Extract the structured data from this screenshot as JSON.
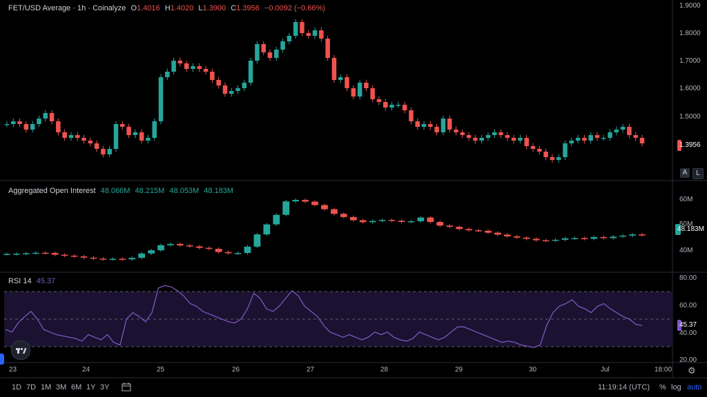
{
  "header": {
    "symbol": "FET/USD Average · 1h · Coinalyze",
    "open_label": "O",
    "open": "1.4016",
    "high_label": "H",
    "high": "1.4020",
    "low_label": "L",
    "low": "1.3900",
    "close_label": "C",
    "close": "1.3956",
    "change": "−0.0092 (−0.66%)"
  },
  "oi_legend": {
    "title": "Aggregated Open Interest",
    "v1": "48.066M",
    "v2": "48.215M",
    "v3": "48.053M",
    "v4": "48.183M"
  },
  "rsi_legend": {
    "title": "RSI 14",
    "value": "45.37"
  },
  "price_axis": [
    "1.9000",
    "1.8000",
    "1.7000",
    "1.6000",
    "1.5000"
  ],
  "price_tag": "1.3956",
  "oi_axis": [
    "60M",
    "50M",
    "40M"
  ],
  "oi_tag": "48.183M",
  "rsi_axis": [
    "80.00",
    "60.00",
    "40.00",
    "20.00"
  ],
  "rsi_tag": "45.37",
  "time_axis": [
    "23",
    "24",
    "25",
    "26",
    "27",
    "28",
    "29",
    "30",
    "Jul",
    "18:00"
  ],
  "corner_buttons": {
    "auto_scale": "A",
    "log_scale": "L"
  },
  "bottom_bar": {
    "ranges": [
      "1D",
      "7D",
      "1M",
      "3M",
      "6M",
      "1Y",
      "3Y"
    ],
    "calendar_icon": "calendar-range-icon",
    "clock": "11:19:14 (UTC)",
    "percent": "%",
    "log": "log",
    "auto": "auto"
  },
  "colors": {
    "up": "#26a69a",
    "down": "#ef5350",
    "rsi": "#7e57c2",
    "bg": "#000000"
  },
  "chart_data": [
    {
      "type": "line",
      "ohlc_style": "candlestick",
      "series": [
        {
          "values": [
            1.47,
            1.48,
            1.47,
            1.45,
            1.47,
            1.49,
            1.51,
            1.48,
            1.44,
            1.42,
            1.43,
            1.42,
            1.41,
            1.4,
            1.38,
            1.36,
            1.38,
            1.47,
            1.46,
            1.43,
            1.44,
            1.41,
            1.42,
            1.48,
            1.64,
            1.66,
            1.7,
            1.69,
            1.67,
            1.68,
            1.67,
            1.66,
            1.63,
            1.61,
            1.58,
            1.59,
            1.6,
            1.62,
            1.7,
            1.76,
            1.73,
            1.71,
            1.74,
            1.77,
            1.79,
            1.84,
            1.8,
            1.79,
            1.81,
            1.78,
            1.71,
            1.63,
            1.64,
            1.6,
            1.57,
            1.62,
            1.6,
            1.56,
            1.55,
            1.53,
            1.54,
            1.54,
            1.52,
            1.48,
            1.46,
            1.47,
            1.46,
            1.44,
            1.49,
            1.45,
            1.44,
            1.43,
            1.42,
            1.41,
            1.42,
            1.43,
            1.44,
            1.43,
            1.42,
            1.41,
            1.42,
            1.39,
            1.38,
            1.37,
            1.35,
            1.34,
            1.35,
            1.4,
            1.41,
            1.42,
            1.41,
            1.43,
            1.42,
            1.42,
            1.44,
            1.45,
            1.46,
            1.43,
            1.42,
            1.4
          ]
        }
      ],
      "y_axis_ticks": [
        1.9,
        1.8,
        1.7,
        1.6,
        1.5
      ],
      "ylim": [
        1.3,
        1.9
      ]
    },
    {
      "type": "bar",
      "title": "Aggregated Open Interest",
      "series": [
        {
          "values": [
            40.5,
            40.6,
            40.8,
            41.0,
            40.9,
            40.2,
            39.8,
            39.5,
            39.0,
            38.6,
            38.4,
            38.5,
            38.3,
            38.9,
            40.7,
            42.0,
            44.1,
            44.6,
            44.0,
            43.6,
            43.0,
            42.6,
            41.3,
            40.8,
            40.9,
            43.5,
            48.5,
            52.6,
            56.5,
            62.0,
            62.6,
            61.9,
            60.5,
            58.8,
            56.9,
            55.6,
            54.3,
            53.5,
            54.0,
            54.4,
            54.1,
            53.6,
            53.9,
            55.4,
            53.6,
            52.1,
            51.6,
            50.7,
            50.2,
            50.0,
            49.2,
            48.4,
            47.7,
            47.2,
            46.7,
            46.1,
            46.0,
            46.3,
            46.9,
            47.0,
            46.7,
            47.4,
            47.0,
            47.6,
            48.0,
            48.5,
            48.2
          ]
        }
      ],
      "y_axis_ticks": [
        60,
        50,
        40
      ],
      "ylim": [
        35,
        66
      ]
    },
    {
      "type": "line",
      "title": "RSI 14",
      "series": [
        {
          "name": "RSI 14",
          "values": [
            42,
            40,
            47,
            52,
            56,
            50,
            42,
            40,
            38,
            37,
            36,
            35,
            33,
            38,
            36,
            34,
            38,
            32,
            30,
            50,
            55,
            52,
            48,
            55,
            74,
            76,
            75,
            72,
            68,
            62,
            60,
            56,
            54,
            52,
            50,
            48,
            47,
            50,
            58,
            70,
            66,
            58,
            56,
            60,
            66,
            72,
            68,
            60,
            56,
            52,
            45,
            40,
            38,
            36,
            38,
            36,
            34,
            36,
            40,
            38,
            40,
            36,
            34,
            33,
            35,
            40,
            38,
            36,
            34,
            36,
            40,
            44,
            44,
            42,
            40,
            38,
            36,
            34,
            32,
            33,
            32,
            30,
            29,
            28,
            30,
            45,
            55,
            60,
            62,
            65,
            60,
            58,
            55,
            60,
            62,
            58,
            55,
            52,
            50,
            46,
            45
          ]
        }
      ],
      "y_axis_ticks": [
        80,
        60,
        40,
        20
      ],
      "ylim": [
        18,
        82
      ],
      "levels": [
        70,
        50,
        30
      ]
    }
  ]
}
